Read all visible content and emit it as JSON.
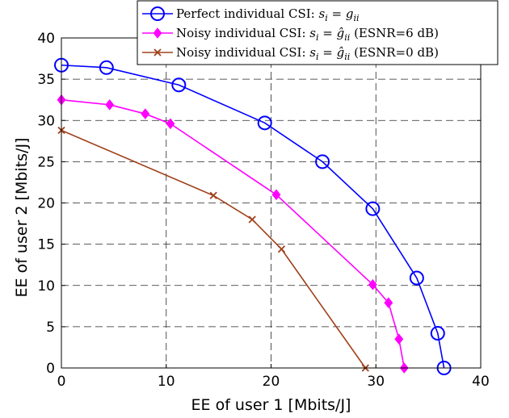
{
  "chart_data": {
    "type": "line",
    "xlabel": "EE of user 1 [Mbits/J]",
    "ylabel": "EE of user 2 [Mbits/J]",
    "xlim": [
      0,
      40
    ],
    "ylim": [
      0,
      40
    ],
    "xticks": [
      0,
      10,
      20,
      30,
      40
    ],
    "yticks": [
      0,
      5,
      10,
      15,
      20,
      25,
      30,
      35,
      40
    ],
    "grid": true,
    "grid_style": "dashed",
    "legend_position": "top-right",
    "series": [
      {
        "name": "Perfect individual CSI: s_i = g_ii",
        "legend_parts": [
          "Perfect individual CSI: ",
          "s",
          "i",
          " = ",
          "g",
          "ii",
          ""
        ],
        "color": "#0000ff",
        "marker": "circle",
        "x": [
          0,
          4.3,
          11.2,
          19.4,
          24.9,
          29.7,
          33.9,
          35.9,
          36.5
        ],
        "y": [
          36.7,
          36.4,
          34.3,
          29.7,
          25.0,
          19.3,
          10.9,
          4.2,
          0
        ]
      },
      {
        "name": "Noisy individual CSI: s_i = ĝ_ii (ESNR=6 dB)",
        "legend_parts": [
          "Noisy individual CSI: ",
          "s",
          "i",
          " = ",
          "ĝ",
          "ii",
          " (ESNR=6 dB)"
        ],
        "color": "#ff00ff",
        "marker": "diamond",
        "x": [
          0,
          4.6,
          8.0,
          10.4,
          20.5,
          29.7,
          31.2,
          32.2,
          32.7
        ],
        "y": [
          32.5,
          31.9,
          30.8,
          29.6,
          21.0,
          10.1,
          7.9,
          3.5,
          0
        ]
      },
      {
        "name": "Noisy individual CSI: s_i = ĝ_ii (ESNR=0 dB)",
        "legend_parts": [
          "Noisy individual CSI: ",
          "s",
          "i",
          " = ",
          "ĝ",
          "ii",
          " (ESNR=0 dB)"
        ],
        "color": "#a0401a",
        "marker": "x",
        "x": [
          0,
          14.5,
          18.2,
          21.0,
          29.0
        ],
        "y": [
          28.8,
          20.9,
          18.0,
          14.4,
          0
        ]
      }
    ]
  }
}
